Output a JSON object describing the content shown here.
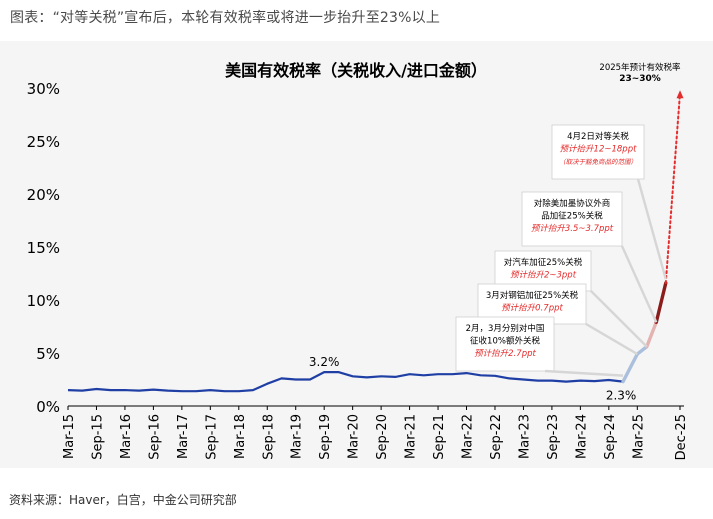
{
  "page_title": "图表：“对等关税”宣布后，本轮有效税率或将进一步抬升至23%以上",
  "source_note": "资料来源：Haver，白宫，中金公司研究部",
  "chart_data": {
    "type": "line",
    "title": "美国有效税率（关税收入/进口金额）",
    "ylim": [
      0,
      30
    ],
    "yticks": [
      "0%",
      "5%",
      "10%",
      "15%",
      "20%",
      "25%",
      "30%"
    ],
    "xticks": [
      "Mar-15",
      "Sep-15",
      "Mar-16",
      "Sep-16",
      "Mar-17",
      "Sep-17",
      "Mar-18",
      "Sep-18",
      "Mar-19",
      "Sep-19",
      "Mar-20",
      "Sep-20",
      "Mar-21",
      "Sep-21",
      "Mar-22",
      "Sep-22",
      "Mar-23",
      "Sep-23",
      "Mar-24",
      "Sep-24",
      "Mar-25",
      "Dec-25"
    ],
    "grid": false,
    "series": [
      {
        "color": "#1f3fa5",
        "x": [
          "2015-03",
          "2015-06",
          "2015-09",
          "2015-12",
          "2016-03",
          "2016-06",
          "2016-09",
          "2016-12",
          "2017-03",
          "2017-06",
          "2017-09",
          "2017-12",
          "2018-03",
          "2018-06",
          "2018-09",
          "2018-12",
          "2019-03",
          "2019-06",
          "2019-09",
          "2019-12",
          "2020-03",
          "2020-06",
          "2020-09",
          "2020-12",
          "2021-03",
          "2021-06",
          "2021-09",
          "2021-12",
          "2022-03",
          "2022-06",
          "2022-09",
          "2022-12",
          "2023-03",
          "2023-06",
          "2023-09",
          "2023-12",
          "2024-03",
          "2024-06",
          "2024-09",
          "2024-12"
        ],
        "values": [
          1.5,
          1.45,
          1.6,
          1.5,
          1.5,
          1.45,
          1.55,
          1.45,
          1.4,
          1.4,
          1.5,
          1.4,
          1.4,
          1.5,
          2.1,
          2.6,
          2.5,
          2.5,
          3.2,
          3.2,
          2.8,
          2.7,
          2.8,
          2.75,
          3.0,
          2.9,
          3.0,
          3.0,
          3.1,
          2.9,
          2.85,
          2.6,
          2.5,
          2.4,
          2.4,
          2.3,
          2.4,
          2.35,
          2.45,
          2.3
        ]
      }
    ],
    "segments": [
      {
        "color": "#a9bfdc",
        "from": [
          "2024-12",
          2.3
        ],
        "to": [
          "2025-03",
          4.9
        ]
      },
      {
        "color": "#a9bfdc",
        "from": [
          "2025-03",
          4.9
        ],
        "to": [
          "2025-05",
          5.6
        ]
      },
      {
        "color": "#e3b3b1",
        "from": [
          "2025-05",
          5.6
        ],
        "to": [
          "2025-07",
          7.9
        ]
      },
      {
        "color": "#8b1c1c",
        "from": [
          "2025-07",
          7.9
        ],
        "to": [
          "2025-09",
          11.6
        ]
      },
      {
        "color": "#e52b2b",
        "dashed": true,
        "from": [
          "2025-09",
          11.6
        ],
        "to": [
          "2025-12",
          29.5
        ]
      }
    ],
    "value_labels": [
      {
        "text": "3.2%",
        "x": "2019-09",
        "y": 3.2
      },
      {
        "text": "2.3%",
        "x": "2024-12",
        "y": 2.3
      }
    ],
    "annotations": [
      {
        "lines": [
          "2025年预计有效税率",
          "23~30%"
        ],
        "red": []
      },
      {
        "lines": [
          "4月2日对等关税",
          "预计抬升12~18ppt",
          "（取决于豁免商品的范围）"
        ],
        "red": [
          1,
          2
        ]
      },
      {
        "lines": [
          "对除美加墨协议外商",
          "品加征25%关税",
          "预计抬升3.5~3.7ppt"
        ],
        "red": [
          2
        ]
      },
      {
        "lines": [
          "对汽车加征25%关税",
          "预计抬升2~3ppt"
        ],
        "red": [
          1
        ]
      },
      {
        "lines": [
          "3月对钢铝加征25%关税",
          "预计抬升0.7ppt"
        ],
        "red": [
          1
        ]
      },
      {
        "lines": [
          "2月，3月分别对中国",
          "征收10%额外关税",
          "预计抬升2.7ppt"
        ],
        "red": [
          2
        ]
      }
    ]
  }
}
